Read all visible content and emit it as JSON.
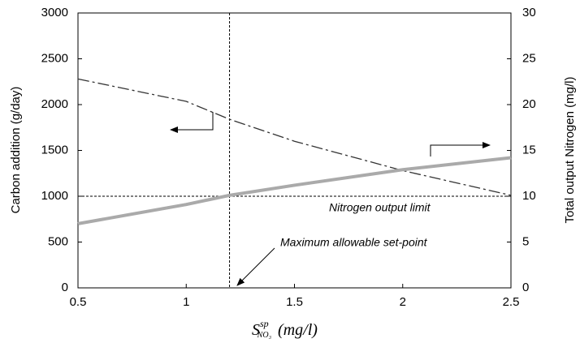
{
  "chart_data": {
    "type": "line",
    "y_label": "Carbon addition (g/day)",
    "y2_label": "Total output Nitrogen (mg/l)",
    "x_label": {
      "symbol": "S",
      "superscript": "sp",
      "subscript": "NO₃",
      "unit": "(mg/l)"
    },
    "x": [
      0.5,
      1.0,
      1.2,
      1.5,
      2.0,
      2.5
    ],
    "series": [
      {
        "color": "#333333",
        "dash": "dashdot",
        "values": [
          2280,
          2035,
          1840,
          1600,
          1280,
          1010
        ]
      },
      {
        "color": "#aaaaaa",
        "axis": "y2",
        "values": [
          7.0,
          9.1,
          10.1,
          11.2,
          12.9,
          14.2
        ]
      }
    ],
    "xlim": [
      0.5,
      2.5
    ],
    "xticks": [
      0.5,
      1,
      1.5,
      2,
      2.5
    ],
    "ylim": [
      0,
      3000
    ],
    "yticks": [
      0,
      500,
      1000,
      1500,
      2000,
      2500,
      3000
    ],
    "y2lim": [
      0,
      30
    ],
    "y2ticks": [
      0,
      5,
      10,
      15,
      20,
      25,
      30
    ],
    "grid": false,
    "hlines": [
      {
        "value": 1000,
        "label": "Nitrogen output limit"
      }
    ],
    "vlines": [
      {
        "value": 1.2,
        "label": "Maximum allowable set-point"
      }
    ]
  }
}
